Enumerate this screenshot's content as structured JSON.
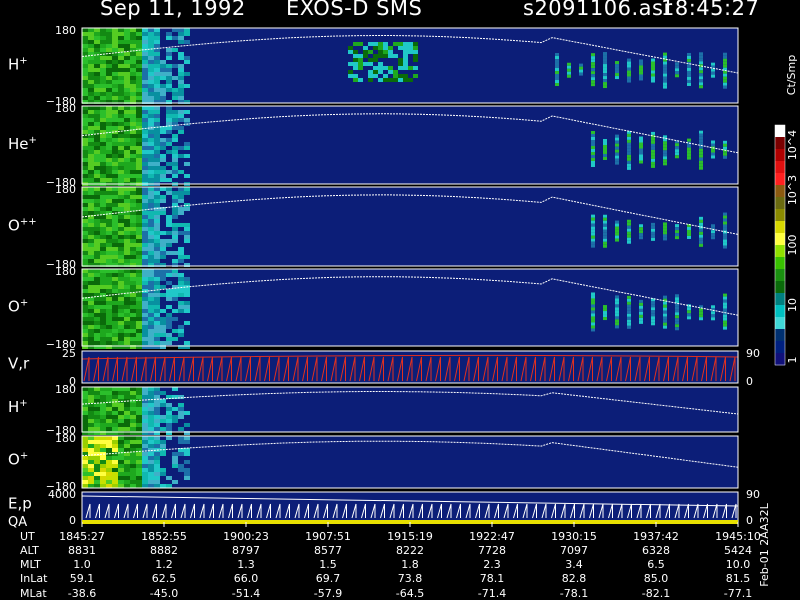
{
  "title": {
    "date": "Sep 11, 1992",
    "instrument": "EXOS-D SMS",
    "file": "s2091106.asr",
    "time": "18:45:27"
  },
  "side_label": "Feb-01 2AA32L",
  "colorbar": {
    "label": "Ct/Smp",
    "ticks": [
      "10^4",
      "10^3",
      "100",
      "10",
      "1"
    ],
    "colors": [
      "#ffffff",
      "#7a0000",
      "#b00000",
      "#e01010",
      "#ff2020",
      "#8b5a10",
      "#6b6b10",
      "#8a8a00",
      "#d8d800",
      "#ffff40",
      "#90e000",
      "#38c000",
      "#1a9010",
      "#0a6a0a",
      "#008080",
      "#00c0c0",
      "#40d8d8",
      "#003070",
      "#002080",
      "#10107a"
    ]
  },
  "x_times": [
    "1845:27",
    "1852:55",
    "1900:23",
    "1907:51",
    "1915:19",
    "1922:47",
    "1930:15",
    "1937:42",
    "1945:10"
  ],
  "ephemeris": [
    {
      "label": "UT",
      "values": [
        "1845:27",
        "1852:55",
        "1900:23",
        "1907:51",
        "1915:19",
        "1922:47",
        "1930:15",
        "1937:42",
        "1945:10"
      ]
    },
    {
      "label": "ALT",
      "values": [
        "8831",
        "8882",
        "8797",
        "8577",
        "8222",
        "7728",
        "7097",
        "6328",
        "5424"
      ]
    },
    {
      "label": "MLT",
      "values": [
        "1.0",
        "1.2",
        "1.3",
        "1.5",
        "1.8",
        "2.3",
        "3.4",
        "6.5",
        "10.0"
      ]
    },
    {
      "label": "InLat",
      "values": [
        "59.1",
        "62.5",
        "66.0",
        "69.7",
        "73.8",
        "78.1",
        "82.8",
        "85.0",
        "81.5"
      ]
    },
    {
      "label": "MLat",
      "values": [
        "-38.6",
        "-45.0",
        "-51.4",
        "-57.9",
        "-64.5",
        "-71.4",
        "-78.1",
        "-82.1",
        "-77.1"
      ]
    }
  ],
  "chart_data": {
    "type": "heatmap",
    "panels": [
      {
        "label": "H",
        "sup": "+",
        "ylabels": [
          "180",
          "−180"
        ],
        "kind": "spectrogram",
        "ylim": [
          -180,
          180
        ]
      },
      {
        "label": "He",
        "sup": "+",
        "ylabels": [
          "180",
          "−180"
        ],
        "kind": "spectrogram",
        "ylim": [
          -180,
          180
        ]
      },
      {
        "label": "O",
        "sup": "++",
        "ylabels": [
          "180",
          "−180"
        ],
        "kind": "spectrogram",
        "ylim": [
          -180,
          180
        ]
      },
      {
        "label": "O",
        "sup": "+",
        "ylabels": [
          "180",
          "−180"
        ],
        "kind": "spectrogram",
        "ylim": [
          -180,
          180
        ]
      },
      {
        "label": "V,r",
        "sup": "",
        "ylabels": [
          "25",
          "0"
        ],
        "right_labels": [
          "90",
          "0"
        ],
        "kind": "line",
        "ylim": [
          0,
          25
        ]
      },
      {
        "label": "H",
        "sup": "+",
        "ylabels": [
          "180",
          "−180"
        ],
        "kind": "spectrogram",
        "ylim": [
          -180,
          180
        ]
      },
      {
        "label": "O",
        "sup": "+",
        "ylabels": [
          "180",
          "−180"
        ],
        "kind": "spectrogram",
        "ylim": [
          -180,
          180
        ]
      },
      {
        "label": "E,p",
        "sup": "",
        "label2": "QA",
        "ylabels": [
          "4000",
          "0"
        ],
        "right_labels": [
          "90",
          "0"
        ],
        "kind": "line",
        "ylim": [
          0,
          4000
        ]
      }
    ]
  }
}
